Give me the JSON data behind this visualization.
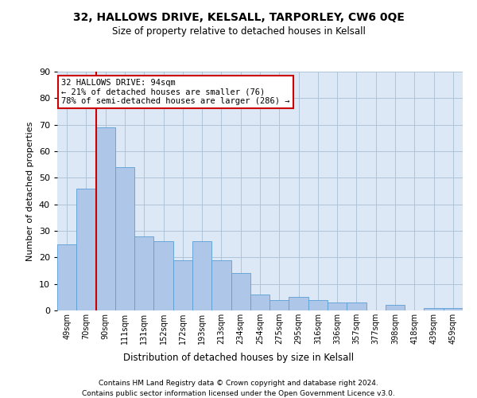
{
  "title": "32, HALLOWS DRIVE, KELSALL, TARPORLEY, CW6 0QE",
  "subtitle": "Size of property relative to detached houses in Kelsall",
  "xlabel": "Distribution of detached houses by size in Kelsall",
  "ylabel": "Number of detached properties",
  "categories": [
    "49sqm",
    "70sqm",
    "90sqm",
    "111sqm",
    "131sqm",
    "152sqm",
    "172sqm",
    "193sqm",
    "213sqm",
    "234sqm",
    "254sqm",
    "275sqm",
    "295sqm",
    "316sqm",
    "336sqm",
    "357sqm",
    "377sqm",
    "398sqm",
    "418sqm",
    "439sqm",
    "459sqm"
  ],
  "values": [
    25,
    46,
    69,
    54,
    28,
    26,
    19,
    26,
    19,
    14,
    6,
    4,
    5,
    4,
    3,
    3,
    0,
    2,
    0,
    1,
    1
  ],
  "bar_color": "#aec6e8",
  "bar_edge_color": "#5a9fd4",
  "vline_x": 1.5,
  "annotation_title": "32 HALLOWS DRIVE: 94sqm",
  "annotation_line1": "← 21% of detached houses are smaller (76)",
  "annotation_line2": "78% of semi-detached houses are larger (286) →",
  "annotation_box_color": "#ffffff",
  "annotation_box_edge": "#cc0000",
  "vline_color": "#cc0000",
  "footer1": "Contains HM Land Registry data © Crown copyright and database right 2024.",
  "footer2": "Contains public sector information licensed under the Open Government Licence v3.0.",
  "ylim": [
    0,
    90
  ],
  "background_color": "#ffffff",
  "axes_bg_color": "#dce8f5",
  "grid_color": "#b0c4d8"
}
